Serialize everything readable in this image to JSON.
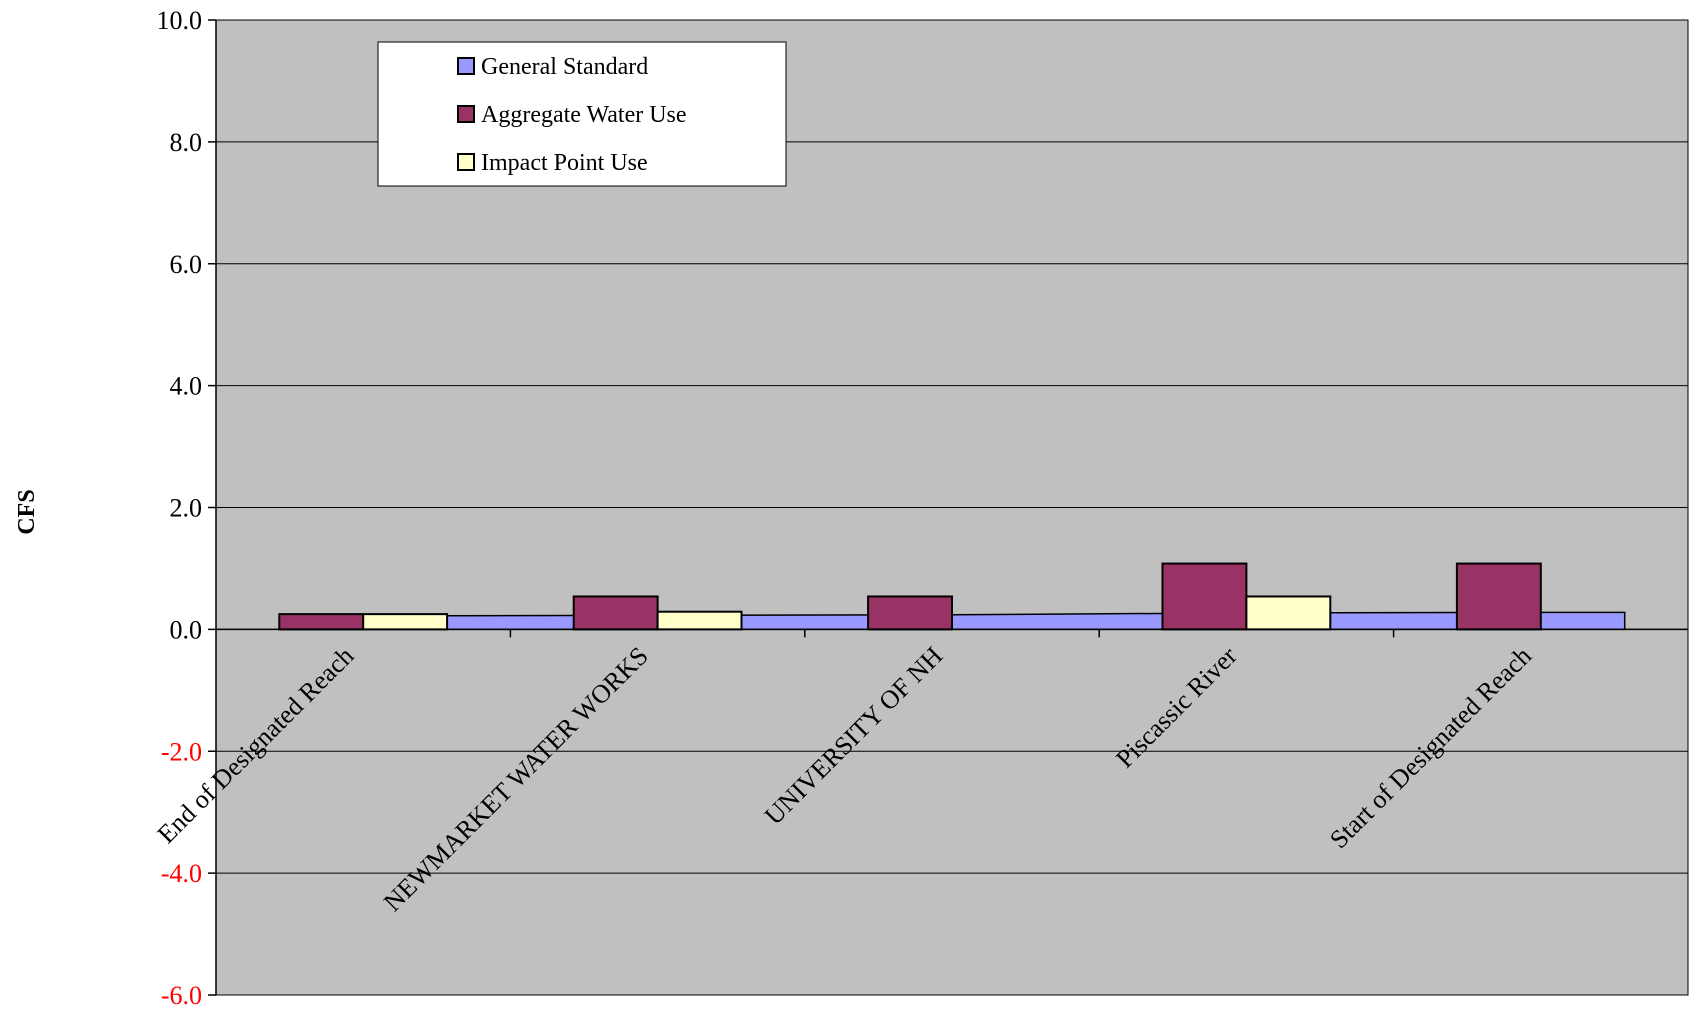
{
  "chart_data": {
    "type": "area-bar-combo",
    "ylabel": "CFS",
    "xlabel": "",
    "ylim": [
      -6.0,
      10.0
    ],
    "yticks": [
      -6.0,
      -4.0,
      -2.0,
      0.0,
      2.0,
      4.0,
      6.0,
      8.0,
      10.0
    ],
    "ytick_labels": [
      "-6.0",
      "-4.0",
      "-2.0",
      "0.0",
      "2.0",
      "4.0",
      "6.0",
      "8.0",
      "10.0"
    ],
    "negative_tick_color": "#FF0000",
    "grid": true,
    "plot_background": "#C0C0C0",
    "categories": [
      "End of Designated Reach",
      "NEWMARKET WATER WORKS",
      "UNIVERSITY OF NH",
      "Piscassic River",
      "Start of Designated Reach"
    ],
    "series": [
      {
        "name": "General Standard",
        "type": "area",
        "color": "#9999FF",
        "values": [
          0.22,
          0.23,
          0.24,
          0.27,
          0.28
        ]
      },
      {
        "name": "Aggregate Water Use",
        "type": "bar",
        "color": "#993366",
        "values": [
          0.25,
          0.54,
          0.54,
          1.08,
          1.08
        ]
      },
      {
        "name": "Impact Point Use",
        "type": "bar",
        "color": "#FFFFCC",
        "values": [
          0.25,
          0.29,
          0.0,
          0.54,
          0.0
        ]
      }
    ],
    "legend_position": "top-left"
  }
}
